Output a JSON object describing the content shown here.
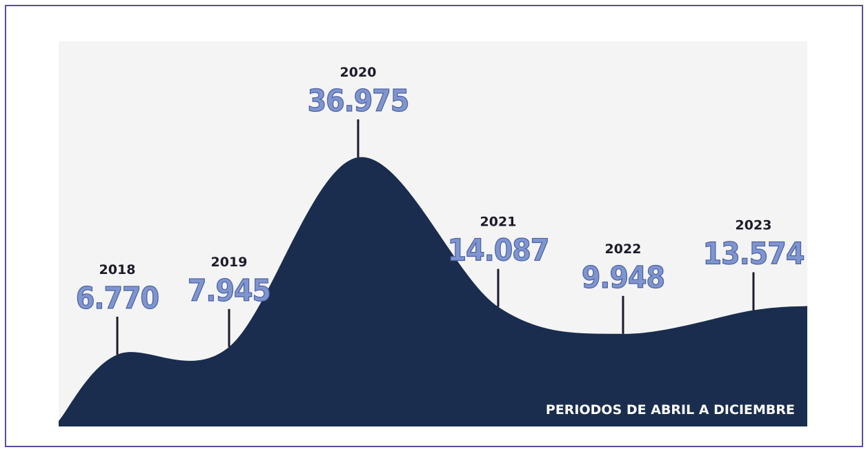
{
  "chart_data": {
    "type": "area",
    "categories": [
      "2018",
      "2019",
      "2020",
      "2021",
      "2022",
      "2023"
    ],
    "values": [
      6770,
      7945,
      36975,
      14087,
      9948,
      13574
    ],
    "value_labels": [
      "6.770",
      "7.945",
      "36.975",
      "14.087",
      "9.948",
      "13.574"
    ],
    "color": "#1a2d4e",
    "annotation": "PERIODOS DE ABRIL A DICIEMBRE"
  }
}
